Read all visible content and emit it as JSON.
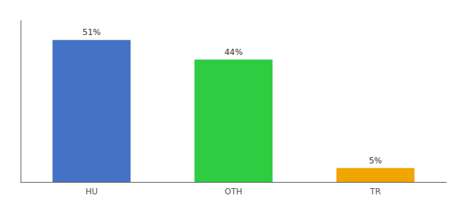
{
  "chart_data": {
    "type": "bar",
    "categories": [
      "HU",
      "OTH",
      "TR"
    ],
    "values": [
      51,
      44,
      5
    ],
    "value_labels": [
      "51%",
      "44%",
      "5%"
    ],
    "colors": [
      "#4472c4",
      "#2ecc40",
      "#f0a500"
    ],
    "ylim": [
      0,
      58
    ],
    "yticks": [],
    "data_labels": true,
    "tick_labels": "x",
    "grid": false
  }
}
